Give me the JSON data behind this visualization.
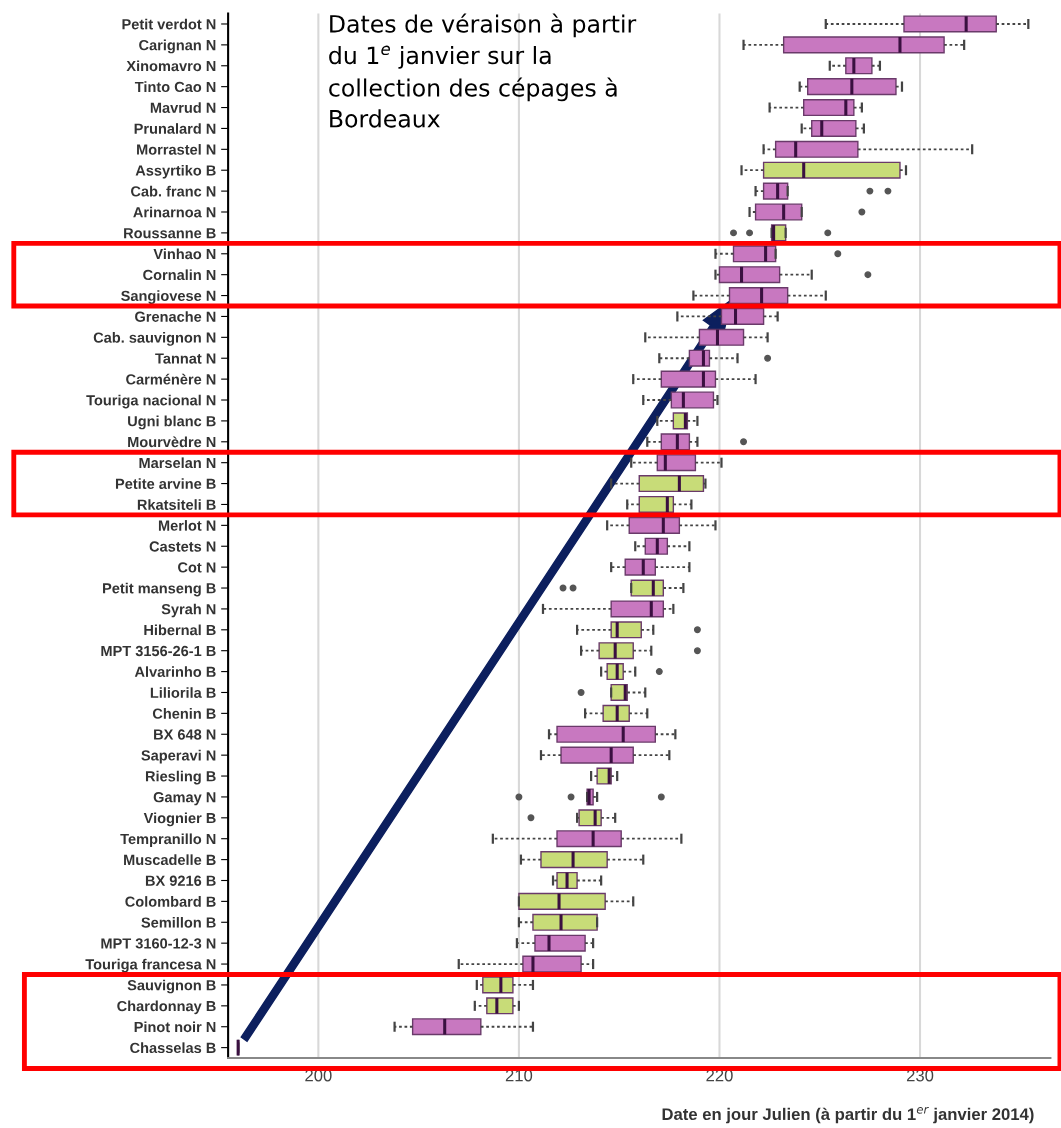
{
  "chart_data": {
    "type": "box",
    "orientation": "horizontal",
    "xlabel": "Date en jour Julien (à partir du 1$^{er}$ janvier 2014)",
    "annotations": [
      "Dates de véraison à partir\ndu 1$^{e}$ janvier sur la\ncollection des cépages à\nBordeaux"
    ],
    "xlim": [
      195.5,
      236.5
    ],
    "xticks": [
      200,
      210,
      220,
      230
    ],
    "grid": "x",
    "categories": [
      "Petit verdot N",
      "Carignan N",
      "Xinomavro N",
      "Tinto Cao N",
      "Mavrud N",
      "Prunalard N",
      "Morrastel N",
      "Assyrtiko B",
      "Cab. franc N",
      "Arinarnoa N",
      "Roussanne B",
      "Vinhao N",
      "Cornalin N",
      "Sangiovese N",
      "Grenache N",
      "Cab. sauvignon N",
      "Tannat N",
      "Carménère N",
      "Touriga nacional N",
      "Ugni blanc B",
      "Mourvèdre N",
      "Marselan N",
      "Petite arvine B",
      "Rkatsiteli B",
      "Merlot N",
      "Castets N",
      "Cot N",
      "Petit manseng B",
      "Syrah N",
      "Hibernal B",
      "MPT 3156-26-1 B",
      "Alvarinho B",
      "Liliorila B",
      "Chenin B",
      "BX 648 N",
      "Saperavi N",
      "Riesling B",
      "Gamay N",
      "Viognier B",
      "Tempranillo N",
      "Muscadelle B",
      "BX 9216 B",
      "Colombard B",
      "Semillon B",
      "MPT 3160-12-3 N",
      "Touriga francesa N",
      "Sauvignon B",
      "Chardonnay B",
      "Pinot noir N",
      "Chasselas B"
    ],
    "colors": [
      "#c878c0",
      "#c878c0",
      "#c878c0",
      "#c878c0",
      "#c878c0",
      "#c878c0",
      "#c878c0",
      "#c8dc78",
      "#c878c0",
      "#c878c0",
      "#c8dc78",
      "#c878c0",
      "#c878c0",
      "#c878c0",
      "#c878c0",
      "#c878c0",
      "#c878c0",
      "#c878c0",
      "#c878c0",
      "#c8dc78",
      "#c878c0",
      "#c878c0",
      "#c8dc78",
      "#c8dc78",
      "#c878c0",
      "#c878c0",
      "#c878c0",
      "#c8dc78",
      "#c878c0",
      "#c8dc78",
      "#c8dc78",
      "#c8dc78",
      "#c8dc78",
      "#c8dc78",
      "#c878c0",
      "#c878c0",
      "#c8dc78",
      "#c878c0",
      "#c8dc78",
      "#c878c0",
      "#c8dc78",
      "#c8dc78",
      "#c8dc78",
      "#c8dc78",
      "#c878c0",
      "#c878c0",
      "#c8dc78",
      "#c8dc78",
      "#c878c0",
      "#555555"
    ],
    "boxes": [
      {
        "low": 225.3,
        "q1": 229.2,
        "median": 232.3,
        "q3": 233.8,
        "high": 235.4
      },
      {
        "low": 221.2,
        "q1": 223.2,
        "median": 229.0,
        "q3": 231.2,
        "high": 232.2
      },
      {
        "low": 225.5,
        "q1": 226.3,
        "median": 226.7,
        "q3": 227.6,
        "high": 228.0
      },
      {
        "low": 224.0,
        "q1": 224.4,
        "median": 226.6,
        "q3": 228.8,
        "high": 229.1
      },
      {
        "low": 222.5,
        "q1": 224.2,
        "median": 226.3,
        "q3": 226.7,
        "high": 227.1
      },
      {
        "low": 224.1,
        "q1": 224.6,
        "median": 225.1,
        "q3": 226.8,
        "high": 227.2
      },
      {
        "low": 222.2,
        "q1": 222.8,
        "median": 223.8,
        "q3": 226.9,
        "high": 232.6
      },
      {
        "low": 221.1,
        "q1": 222.2,
        "median": 224.2,
        "q3": 229.0,
        "high": 229.3
      },
      {
        "low": 221.8,
        "q1": 222.2,
        "median": 222.9,
        "q3": 223.4,
        "high": 223.4,
        "outliers": [
          227.5,
          228.4
        ]
      },
      {
        "low": 221.5,
        "q1": 221.8,
        "median": 223.2,
        "q3": 224.1,
        "high": 224.1,
        "outliers": [
          227.1
        ]
      },
      {
        "low": 222.6,
        "q1": 222.6,
        "median": 222.7,
        "q3": 223.3,
        "high": 223.3,
        "outliers": [
          220.7,
          221.5,
          225.4
        ]
      },
      {
        "low": 219.8,
        "q1": 220.7,
        "median": 222.3,
        "q3": 222.8,
        "high": 222.8,
        "outliers": [
          225.9
        ]
      },
      {
        "low": 219.8,
        "q1": 220.0,
        "median": 221.1,
        "q3": 223.0,
        "high": 224.6,
        "outliers": [
          227.4
        ]
      },
      {
        "low": 218.7,
        "q1": 220.5,
        "median": 222.1,
        "q3": 223.4,
        "high": 225.3
      },
      {
        "low": 217.9,
        "q1": 220.1,
        "median": 220.8,
        "q3": 222.2,
        "high": 222.9
      },
      {
        "low": 216.3,
        "q1": 219.0,
        "median": 219.9,
        "q3": 221.2,
        "high": 222.4
      },
      {
        "low": 217.0,
        "q1": 218.5,
        "median": 219.2,
        "q3": 219.5,
        "high": 220.9,
        "outliers": [
          222.4
        ]
      },
      {
        "low": 215.7,
        "q1": 217.1,
        "median": 219.2,
        "q3": 219.8,
        "high": 221.8
      },
      {
        "low": 216.2,
        "q1": 217.6,
        "median": 218.2,
        "q3": 219.7,
        "high": 219.9
      },
      {
        "low": 216.9,
        "q1": 217.7,
        "median": 218.3,
        "q3": 218.4,
        "high": 218.9
      },
      {
        "low": 216.4,
        "q1": 217.1,
        "median": 217.9,
        "q3": 218.5,
        "high": 218.9,
        "outliers": [
          221.2
        ]
      },
      {
        "low": 215.6,
        "q1": 216.9,
        "median": 217.3,
        "q3": 218.8,
        "high": 220.1
      },
      {
        "low": 214.6,
        "q1": 216.0,
        "median": 218.0,
        "q3": 219.2,
        "high": 219.3
      },
      {
        "low": 215.4,
        "q1": 216.0,
        "median": 217.4,
        "q3": 217.7,
        "high": 218.6
      },
      {
        "low": 214.4,
        "q1": 215.5,
        "median": 217.2,
        "q3": 218.0,
        "high": 219.8
      },
      {
        "low": 215.8,
        "q1": 216.3,
        "median": 216.9,
        "q3": 217.4,
        "high": 218.5
      },
      {
        "low": 214.6,
        "q1": 215.3,
        "median": 216.2,
        "q3": 216.8,
        "high": 218.5
      },
      {
        "low": 215.6,
        "q1": 215.6,
        "median": 216.7,
        "q3": 217.2,
        "high": 218.2,
        "outliers": [
          212.2,
          212.7
        ]
      },
      {
        "low": 211.2,
        "q1": 214.6,
        "median": 216.6,
        "q3": 217.2,
        "high": 217.7
      },
      {
        "low": 212.9,
        "q1": 214.6,
        "median": 214.9,
        "q3": 216.1,
        "high": 216.7,
        "outliers": [
          218.9
        ]
      },
      {
        "low": 213.1,
        "q1": 214.0,
        "median": 214.8,
        "q3": 215.7,
        "high": 216.6,
        "outliers": [
          218.9
        ]
      },
      {
        "low": 214.1,
        "q1": 214.4,
        "median": 214.9,
        "q3": 215.2,
        "high": 215.8,
        "outliers": [
          217.0
        ]
      },
      {
        "low": 214.6,
        "q1": 214.6,
        "median": 215.3,
        "q3": 215.4,
        "high": 216.3,
        "outliers": [
          213.1
        ]
      },
      {
        "low": 213.3,
        "q1": 214.2,
        "median": 214.9,
        "q3": 215.5,
        "high": 216.4
      },
      {
        "low": 211.5,
        "q1": 211.9,
        "median": 215.2,
        "q3": 216.8,
        "high": 217.8
      },
      {
        "low": 211.1,
        "q1": 212.1,
        "median": 214.6,
        "q3": 215.7,
        "high": 217.5
      },
      {
        "low": 213.6,
        "q1": 213.9,
        "median": 214.5,
        "q3": 214.6,
        "high": 214.9
      },
      {
        "low": 213.4,
        "q1": 213.4,
        "median": 213.5,
        "q3": 213.7,
        "high": 213.9,
        "outliers": [
          210.0,
          212.6,
          217.1
        ]
      },
      {
        "low": 212.9,
        "q1": 213.0,
        "median": 213.8,
        "q3": 214.1,
        "high": 214.8,
        "outliers": [
          210.6
        ]
      },
      {
        "low": 208.7,
        "q1": 211.9,
        "median": 213.7,
        "q3": 215.1,
        "high": 218.1
      },
      {
        "low": 210.1,
        "q1": 211.1,
        "median": 212.7,
        "q3": 214.4,
        "high": 216.2
      },
      {
        "low": 211.7,
        "q1": 211.9,
        "median": 212.4,
        "q3": 212.9,
        "high": 214.1
      },
      {
        "low": 210.0,
        "q1": 210.0,
        "median": 212.0,
        "q3": 214.3,
        "high": 215.7
      },
      {
        "low": 210.0,
        "q1": 210.7,
        "median": 212.1,
        "q3": 213.9,
        "high": 213.9
      },
      {
        "low": 209.9,
        "q1": 210.8,
        "median": 211.5,
        "q3": 213.3,
        "high": 213.7
      },
      {
        "low": 207.0,
        "q1": 210.2,
        "median": 210.7,
        "q3": 213.1,
        "high": 213.7
      },
      {
        "low": 207.9,
        "q1": 208.2,
        "median": 209.1,
        "q3": 209.7,
        "high": 210.7
      },
      {
        "low": 207.8,
        "q1": 208.4,
        "median": 208.9,
        "q3": 209.7,
        "high": 210.0
      },
      {
        "low": 203.8,
        "q1": 204.7,
        "median": 206.3,
        "q3": 208.1,
        "high": 210.7
      },
      {
        "low": 196.0,
        "q1": 196.0,
        "median": 196.0,
        "q3": 196.0,
        "high": 196.0
      }
    ]
  }
}
